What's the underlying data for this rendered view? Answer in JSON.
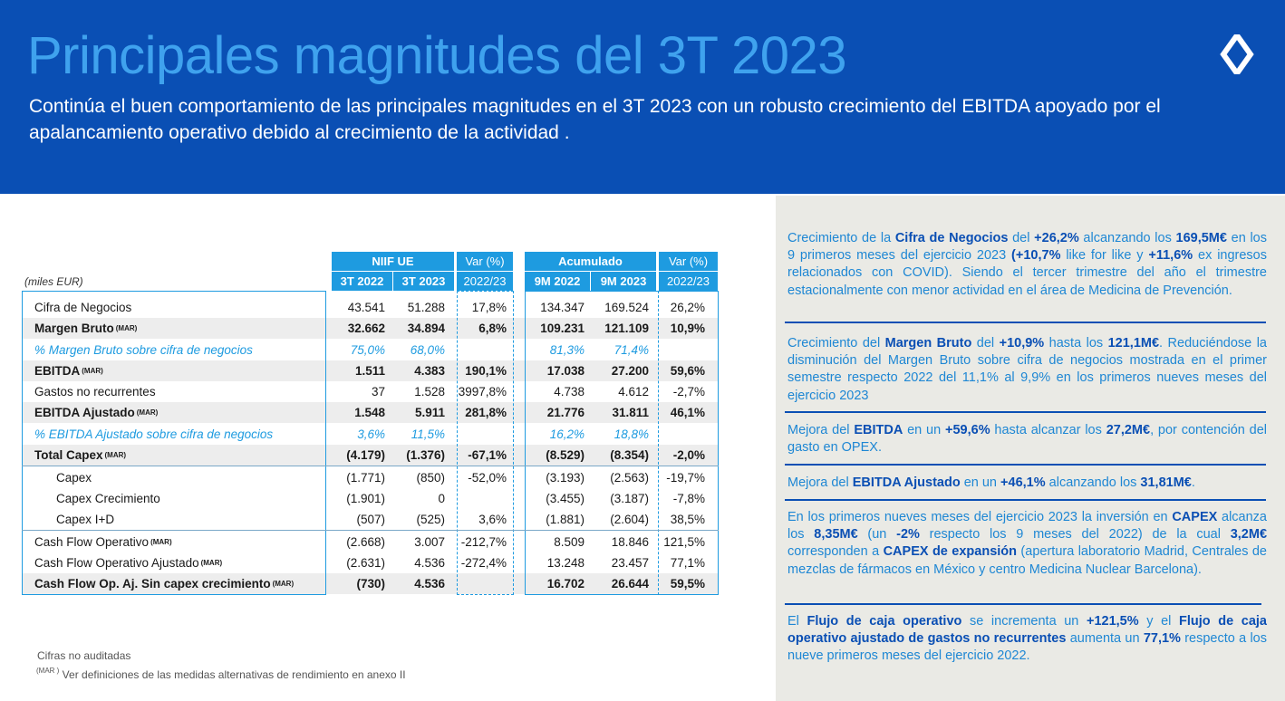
{
  "header": {
    "title": "Principales magnitudes del 3T 2023",
    "subtitle": "Continúa el buen comportamiento de las principales magnitudes en el 3T 2023 con un robusto crecimiento del EBITDA apoyado por el apalancamiento operativo debido al crecimiento de la actividad ."
  },
  "units_label": "(miles EUR)",
  "table": {
    "group_niif": "NIIF UE",
    "group_var": "Var (%)",
    "group_acum": "Acumulado",
    "group_var2": "Var (%)",
    "col_3t22": "3T 2022",
    "col_3t23": "3T 2023",
    "col_var": "2022/23",
    "col_9m22": "9M 2022",
    "col_9m23": "9M 2023",
    "col_var2": "2022/23",
    "mar_tag": "(MAR)",
    "rows": [
      {
        "label": "Cifra de Negocios",
        "a": "43.541",
        "b": "51.288",
        "c": "17,8%",
        "d": "134.347",
        "e": "169.524",
        "f": "26,2%"
      },
      {
        "label": "Margen Bruto",
        "a": "32.662",
        "b": "34.894",
        "c": "6,8%",
        "d": "109.231",
        "e": "121.109",
        "f": "10,9%"
      },
      {
        "label": "% Margen Bruto sobre cifra de negocios",
        "a": "75,0%",
        "b": "68,0%",
        "c": "",
        "d": "81,3%",
        "e": "71,4%",
        "f": ""
      },
      {
        "label": "EBITDA",
        "a": "1.511",
        "b": "4.383",
        "c": "190,1%",
        "d": "17.038",
        "e": "27.200",
        "f": "59,6%"
      },
      {
        "label": "Gastos no recurrentes",
        "a": "37",
        "b": "1.528",
        "c": "3997,8%",
        "d": "4.738",
        "e": "4.612",
        "f": "-2,7%"
      },
      {
        "label": "EBITDA Ajustado",
        "a": "1.548",
        "b": "5.911",
        "c": "281,8%",
        "d": "21.776",
        "e": "31.811",
        "f": "46,1%"
      },
      {
        "label": "% EBITDA Ajustado sobre cifra de negocios",
        "a": "3,6%",
        "b": "11,5%",
        "c": "",
        "d": "16,2%",
        "e": "18,8%",
        "f": ""
      },
      {
        "label": "Total Capex",
        "a": "(4.179)",
        "b": "(1.376)",
        "c": "-67,1%",
        "d": "(8.529)",
        "e": "(8.354)",
        "f": "-2,0%"
      },
      {
        "label": "Capex",
        "a": "(1.771)",
        "b": "(850)",
        "c": "-52,0%",
        "d": "(3.193)",
        "e": "(2.563)",
        "f": "-19,7%"
      },
      {
        "label": "Capex Crecimiento",
        "a": "(1.901)",
        "b": "0",
        "c": "",
        "d": "(3.455)",
        "e": "(3.187)",
        "f": "-7,8%"
      },
      {
        "label": "Capex I+D",
        "a": "(507)",
        "b": "(525)",
        "c": "3,6%",
        "d": "(1.881)",
        "e": "(2.604)",
        "f": "38,5%"
      },
      {
        "label": "Cash Flow Operativo",
        "a": "(2.668)",
        "b": "3.007",
        "c": "-212,7%",
        "d": "8.509",
        "e": "18.846",
        "f": "121,5%"
      },
      {
        "label": "Cash Flow Operativo  Ajustado",
        "a": "(2.631)",
        "b": "4.536",
        "c": "-272,4%",
        "d": "13.248",
        "e": "23.457",
        "f": "77,1%"
      },
      {
        "label": "Cash Flow Op. Aj. Sin capex crecimiento",
        "a": "(730)",
        "b": "4.536",
        "c": "",
        "d": "16.702",
        "e": "26.644",
        "f": "59,5%"
      }
    ]
  },
  "footnotes": {
    "unaudited": "Cifras no auditadas",
    "mar_mark": "(MAR )",
    "mar_def": "Ver definiciones de las medidas alternativas de rendimiento en anexo II"
  },
  "panel": {
    "b1": [
      "Crecimiento de la ",
      "Cifra de Negocios",
      " del ",
      "+26,2%",
      " alcanzando los ",
      "169,5M€",
      " en los 9 primeros meses del ejercicio 2023  ",
      "(+10,7%",
      " like for like y ",
      "+11,6%",
      " ex ingresos relacionados con COVID). Siendo el tercer trimestre del año el trimestre estacionalmente con menor actividad en el área de Medicina de Prevención."
    ],
    "b2": [
      "Crecimiento del ",
      "Margen Bruto",
      " del ",
      "+10,9%",
      " hasta los ",
      "121,1M€",
      ". Reduciéndose la disminución del Margen Bruto sobre cifra de negocios mostrada en el primer semestre respecto 2022 del 11,1% al 9,9% en los primeros nueves meses del ejercicio 2023"
    ],
    "b3": [
      "Mejora del ",
      "EBITDA",
      " en un ",
      "+59,6%",
      " hasta alcanzar los ",
      "27,2M€",
      ", por contención del gasto en OPEX."
    ],
    "b4": [
      "Mejora del ",
      "EBITDA Ajustado",
      " en un ",
      "+46,1%",
      " alcanzando los ",
      "31,81M€",
      "."
    ],
    "b5": [
      "En los primeros nueves meses del ejercicio 2023 la inversión en ",
      "CAPEX",
      " alcanza los ",
      "8,35M€",
      " (un ",
      "-2%",
      " respecto los 9 meses del 2022) de la cual ",
      "3,2M€",
      " corresponden a ",
      "CAPEX de expansión",
      " (apertura laboratorio Madrid, Centrales de mezclas de fármacos en México y centro Medicina Nuclear Barcelona)."
    ],
    "b6": [
      "El ",
      "Flujo de caja operativo",
      " se incrementa un ",
      "+121,5%",
      " y el ",
      "Flujo de caja operativo ajustado de gastos no recurrentes",
      " aumenta un ",
      "77,1%",
      " respecto a  los nueve primeros meses del ejercicio 2022."
    ]
  },
  "colors": {
    "header_bg": "#0a4fb4",
    "title": "#3fa2ee",
    "accent": "#1e9be0",
    "panel_bg": "#eaeae5",
    "panel_text": "#1e87d4"
  },
  "logo_icon": "four-point-star-icon"
}
